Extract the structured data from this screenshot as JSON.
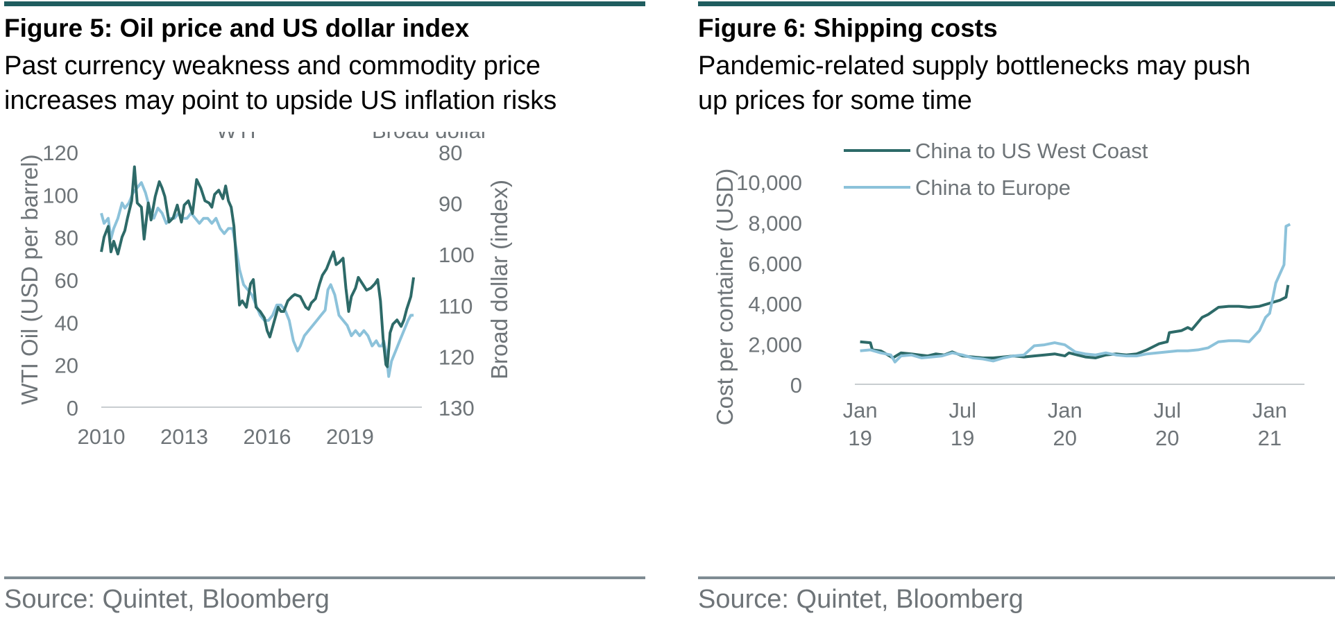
{
  "colors": {
    "dark_teal": "#2d6a68",
    "light_blue": "#8cc2da",
    "rule_teal": "#1f5d5f",
    "rule_grey": "#7f8c93",
    "text_grey": "#6e7478",
    "axis_grey": "#c8cdd0"
  },
  "left": {
    "title": "Figure 5: Oil price and US dollar index",
    "subtitle_lines": [
      "Past currency weakness and commodity price",
      "increases may point to upside US inflation risks"
    ],
    "source": "Source: Quintet, Bloomberg"
  },
  "right": {
    "title": "Figure 6: Shipping costs",
    "subtitle_lines": [
      "Pandemic-related supply bottlenecks may push",
      "up prices for some time"
    ],
    "source": "Source: Quintet, Bloomberg"
  },
  "chart_data": [
    {
      "type": "line",
      "title": "Figure 5: Oil price and US dollar index",
      "xlabel": "",
      "ylabel": "WTI Oil (USD per barrel)",
      "y2label": "Broad dollar (index)",
      "xlim": [
        2010,
        2021.6
      ],
      "ylim": [
        0,
        120
      ],
      "y2lim": [
        130,
        80
      ],
      "y2_inverted": true,
      "x_ticks": [
        2010,
        2013,
        2016,
        2019
      ],
      "x_tick_labels": [
        "2010",
        "2013",
        "2016",
        "2019"
      ],
      "y_ticks": [
        0,
        20,
        40,
        60,
        80,
        100,
        120
      ],
      "y_tick_labels": [
        "0",
        "20",
        "40",
        "60",
        "80",
        "100",
        "120"
      ],
      "y2_ticks": [
        80,
        90,
        100,
        110,
        120,
        130
      ],
      "y2_tick_labels": [
        "80",
        "90",
        "100",
        "110",
        "120",
        "130"
      ],
      "legend": {
        "placement": "top",
        "entries": [
          "WTI",
          "Broad dollar"
        ]
      },
      "grid": false,
      "series": [
        {
          "name": "WTI",
          "axis": "left",
          "color": "#2d6a68",
          "x": [
            2010.0,
            2010.1,
            2010.25,
            2010.35,
            2010.45,
            2010.6,
            2010.75,
            2010.85,
            2010.95,
            2011.1,
            2011.2,
            2011.3,
            2011.45,
            2011.55,
            2011.7,
            2011.8,
            2011.95,
            2012.1,
            2012.2,
            2012.3,
            2012.45,
            2012.6,
            2012.75,
            2012.9,
            2013.0,
            2013.15,
            2013.3,
            2013.45,
            2013.6,
            2013.75,
            2013.9,
            2014.0,
            2014.1,
            2014.25,
            2014.4,
            2014.5,
            2014.6,
            2014.7,
            2014.8,
            2014.9,
            2015.0,
            2015.1,
            2015.25,
            2015.4,
            2015.5,
            2015.6,
            2015.75,
            2015.9,
            2016.0,
            2016.1,
            2016.25,
            2016.4,
            2016.5,
            2016.6,
            2016.75,
            2016.9,
            2017.0,
            2017.2,
            2017.4,
            2017.5,
            2017.6,
            2017.75,
            2017.9,
            2018.0,
            2018.15,
            2018.3,
            2018.4,
            2018.5,
            2018.6,
            2018.75,
            2018.85,
            2018.95,
            2019.05,
            2019.2,
            2019.3,
            2019.45,
            2019.6,
            2019.75,
            2019.9,
            2020.0,
            2020.1,
            2020.2,
            2020.3,
            2020.35,
            2020.45,
            2020.55,
            2020.7,
            2020.85,
            2020.95,
            2021.05,
            2021.2,
            2021.3
          ],
          "values": [
            73,
            80,
            85,
            73,
            78,
            72,
            80,
            83,
            89,
            97,
            113,
            96,
            94,
            79,
            96,
            88,
            99,
            106,
            103,
            99,
            87,
            89,
            95,
            87,
            95,
            97,
            91,
            107,
            103,
            97,
            96,
            94,
            100,
            102,
            98,
            104,
            97,
            94,
            85,
            66,
            48,
            50,
            47,
            58,
            60,
            47,
            45,
            42,
            36,
            33,
            40,
            47,
            45,
            45,
            50,
            52,
            53,
            52,
            47,
            46,
            49,
            51,
            58,
            62,
            65,
            70,
            73,
            67,
            68,
            70,
            56,
            45,
            52,
            56,
            61,
            58,
            55,
            56,
            58,
            60,
            50,
            32,
            20,
            19,
            35,
            39,
            41,
            38,
            41,
            46,
            52,
            61
          ]
        },
        {
          "name": "Broad dollar",
          "axis": "right",
          "color": "#8cc2da",
          "x": [
            2010.0,
            2010.1,
            2010.25,
            2010.35,
            2010.45,
            2010.6,
            2010.75,
            2010.85,
            2011.0,
            2011.15,
            2011.3,
            2011.45,
            2011.6,
            2011.75,
            2011.9,
            2012.05,
            2012.2,
            2012.35,
            2012.5,
            2012.65,
            2012.8,
            2012.95,
            2013.1,
            2013.25,
            2013.4,
            2013.55,
            2013.7,
            2013.85,
            2014.0,
            2014.15,
            2014.3,
            2014.45,
            2014.6,
            2014.75,
            2014.85,
            2015.0,
            2015.15,
            2015.3,
            2015.45,
            2015.6,
            2015.75,
            2015.9,
            2016.05,
            2016.2,
            2016.35,
            2016.5,
            2016.65,
            2016.8,
            2016.95,
            2017.1,
            2017.2,
            2017.35,
            2017.5,
            2017.65,
            2017.8,
            2017.95,
            2018.1,
            2018.2,
            2018.3,
            2018.45,
            2018.6,
            2018.75,
            2018.9,
            2019.05,
            2019.2,
            2019.35,
            2019.5,
            2019.65,
            2019.8,
            2019.95,
            2020.05,
            2020.15,
            2020.22,
            2020.3,
            2020.4,
            2020.5,
            2020.65,
            2020.8,
            2020.95,
            2021.1,
            2021.2,
            2021.3
          ],
          "values": [
            92,
            94,
            93,
            97,
            95,
            93,
            90,
            91,
            90,
            88,
            87,
            86,
            88,
            91,
            93,
            91,
            92,
            94,
            93,
            93,
            92,
            93,
            93,
            92,
            93,
            94,
            93,
            93,
            94,
            93,
            95,
            96,
            95,
            95,
            98,
            103,
            106,
            107,
            108,
            110,
            112,
            113,
            113,
            112,
            110,
            110,
            111,
            113,
            117,
            119,
            118,
            116,
            115,
            114,
            113,
            112,
            111,
            107,
            106,
            108,
            112,
            113,
            114,
            116,
            115,
            116,
            115,
            116,
            118,
            117,
            118,
            118,
            117,
            119,
            124,
            121,
            119,
            117,
            115,
            113,
            112,
            112
          ]
        }
      ]
    },
    {
      "type": "line",
      "title": "Figure 6: Shipping costs",
      "xlabel": "",
      "ylabel": "Cost per container (USD)",
      "xlim": [
        2018.92,
        2021.17
      ],
      "ylim": [
        0,
        10000
      ],
      "x_ticks": [
        2019.0,
        2019.5,
        2020.0,
        2020.5,
        2021.0
      ],
      "x_tick_labels": [
        [
          "Jan",
          "19"
        ],
        [
          "Jul",
          "19"
        ],
        [
          "Jan",
          "20"
        ],
        [
          "Jul",
          "20"
        ],
        [
          "Jan",
          "21"
        ]
      ],
      "y_ticks": [
        0,
        2000,
        4000,
        6000,
        8000,
        10000
      ],
      "y_tick_labels": [
        "0",
        "2,000",
        "4,000",
        "6,000",
        "8,000",
        "10,000"
      ],
      "legend": {
        "placement": "top-left",
        "entries": [
          "China to US West Coast",
          "China to Europe"
        ]
      },
      "grid": false,
      "series": [
        {
          "name": "China to US West Coast",
          "color": "#2d6a68",
          "x": [
            2019.0,
            2019.05,
            2019.06,
            2019.1,
            2019.11,
            2019.16,
            2019.2,
            2019.25,
            2019.29,
            2019.33,
            2019.37,
            2019.41,
            2019.45,
            2019.5,
            2019.55,
            2019.6,
            2019.65,
            2019.7,
            2019.75,
            2019.8,
            2019.85,
            2019.9,
            2019.95,
            2020.0,
            2020.02,
            2020.06,
            2020.1,
            2020.15,
            2020.2,
            2020.25,
            2020.3,
            2020.35,
            2020.4,
            2020.44,
            2020.46,
            2020.5,
            2020.51,
            2020.57,
            2020.6,
            2020.62,
            2020.67,
            2020.7,
            2020.75,
            2020.8,
            2020.85,
            2020.9,
            2020.95,
            2021.0,
            2021.05,
            2021.08,
            2021.09
          ],
          "values": [
            2100,
            2050,
            1700,
            1650,
            1600,
            1300,
            1550,
            1500,
            1450,
            1400,
            1500,
            1450,
            1600,
            1400,
            1350,
            1300,
            1300,
            1350,
            1400,
            1350,
            1400,
            1450,
            1500,
            1400,
            1550,
            1450,
            1350,
            1300,
            1450,
            1500,
            1450,
            1500,
            1700,
            1900,
            2000,
            2100,
            2550,
            2650,
            2800,
            2700,
            3300,
            3450,
            3800,
            3850,
            3850,
            3800,
            3850,
            4000,
            4150,
            4300,
            4900
          ]
        },
        {
          "name": "China to Europe",
          "color": "#8cc2da",
          "x": [
            2019.0,
            2019.05,
            2019.1,
            2019.15,
            2019.17,
            2019.2,
            2019.25,
            2019.3,
            2019.35,
            2019.4,
            2019.45,
            2019.5,
            2019.55,
            2019.6,
            2019.65,
            2019.7,
            2019.75,
            2019.8,
            2019.85,
            2019.9,
            2019.95,
            2020.0,
            2020.05,
            2020.1,
            2020.15,
            2020.2,
            2020.25,
            2020.3,
            2020.35,
            2020.4,
            2020.45,
            2020.5,
            2020.55,
            2020.6,
            2020.65,
            2020.7,
            2020.75,
            2020.8,
            2020.85,
            2020.9,
            2020.95,
            2020.98,
            2021.0,
            2021.03,
            2021.07,
            2021.08,
            2021.1
          ],
          "values": [
            1650,
            1700,
            1550,
            1450,
            1100,
            1400,
            1450,
            1300,
            1350,
            1400,
            1550,
            1450,
            1300,
            1250,
            1150,
            1300,
            1400,
            1450,
            1900,
            1950,
            2050,
            1950,
            1600,
            1500,
            1450,
            1550,
            1450,
            1400,
            1400,
            1500,
            1550,
            1600,
            1650,
            1650,
            1700,
            1800,
            2100,
            2150,
            2150,
            2100,
            2650,
            3300,
            3500,
            5000,
            5900,
            7800,
            7900
          ]
        }
      ]
    }
  ]
}
